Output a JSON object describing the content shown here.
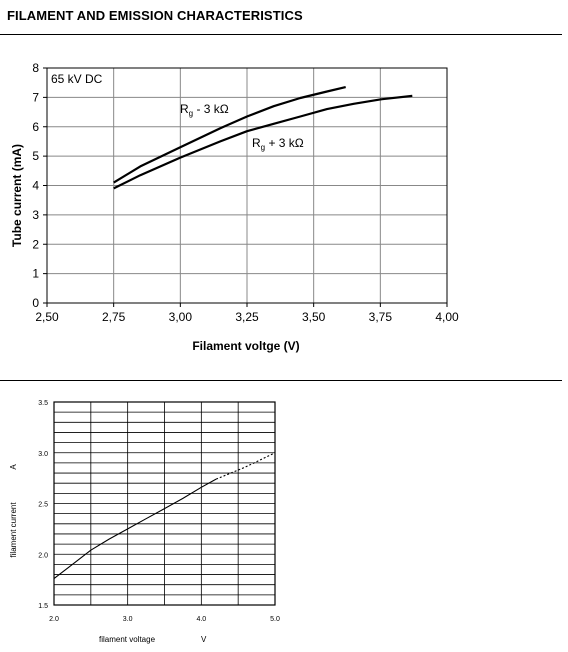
{
  "page": {
    "title": "FILAMENT AND EMISSION CHARACTERISTICS"
  },
  "chart_data": [
    {
      "type": "line",
      "title": "",
      "xlabel": "Filament voltge (V)",
      "ylabel": "Tube current (mA)",
      "xlim": [
        2.5,
        4.0
      ],
      "ylim": [
        0,
        8
      ],
      "x_ticks": [
        2.5,
        2.75,
        3.0,
        3.25,
        3.5,
        3.75,
        4.0
      ],
      "x_tick_labels": [
        "2,50",
        "2,75",
        "3,00",
        "3,25",
        "3,50",
        "3,75",
        "4,00"
      ],
      "y_ticks": [
        0,
        1,
        2,
        3,
        4,
        5,
        6,
        7,
        8
      ],
      "y_tick_labels": [
        "0",
        "1",
        "2",
        "3",
        "4",
        "5",
        "6",
        "7",
        "8"
      ],
      "grid": true,
      "annotation": "65 kV DC",
      "series": [
        {
          "label_main": "R",
          "label_sub": "g",
          "label_rest": " - 3 kΩ",
          "x": [
            2.75,
            2.85,
            3.0,
            3.15,
            3.25,
            3.35,
            3.45,
            3.55,
            3.62
          ],
          "y": [
            4.1,
            4.65,
            5.3,
            5.95,
            6.35,
            6.7,
            6.98,
            7.2,
            7.35
          ]
        },
        {
          "label_main": "R",
          "label_sub": "g",
          "label_rest": " + 3 kΩ",
          "x": [
            2.75,
            2.85,
            3.0,
            3.15,
            3.25,
            3.35,
            3.45,
            3.55,
            3.65,
            3.75,
            3.87
          ],
          "y": [
            3.9,
            4.35,
            4.95,
            5.5,
            5.85,
            6.1,
            6.35,
            6.6,
            6.78,
            6.93,
            7.05
          ]
        }
      ]
    },
    {
      "type": "line",
      "title": "",
      "xlabel": "filament voltage",
      "xunit": "V",
      "ylabel": "filament current",
      "yunit": "A",
      "xlim": [
        2.0,
        5.0
      ],
      "ylim": [
        1.5,
        3.5
      ],
      "x_ticks": [
        2.0,
        3.0,
        4.0,
        5.0
      ],
      "x_tick_labels": [
        "2.0",
        "3.0",
        "4.0",
        "5.0"
      ],
      "y_ticks": [
        1.5,
        2.0,
        2.5,
        3.0,
        3.5
      ],
      "y_tick_labels": [
        "1.5",
        "2.0",
        "2.5",
        "3.0",
        "3.5"
      ],
      "grid": true,
      "series": [
        {
          "style": "solid",
          "x": [
            2.0,
            2.25,
            2.5,
            2.75,
            3.0,
            3.25,
            3.5,
            3.75,
            4.0,
            4.2
          ],
          "y": [
            1.76,
            1.9,
            2.04,
            2.15,
            2.25,
            2.35,
            2.45,
            2.55,
            2.66,
            2.74
          ]
        },
        {
          "style": "dashed",
          "x": [
            4.2,
            4.4,
            4.6,
            4.8,
            5.0
          ],
          "y": [
            2.74,
            2.8,
            2.86,
            2.93,
            3.0
          ]
        }
      ]
    }
  ]
}
